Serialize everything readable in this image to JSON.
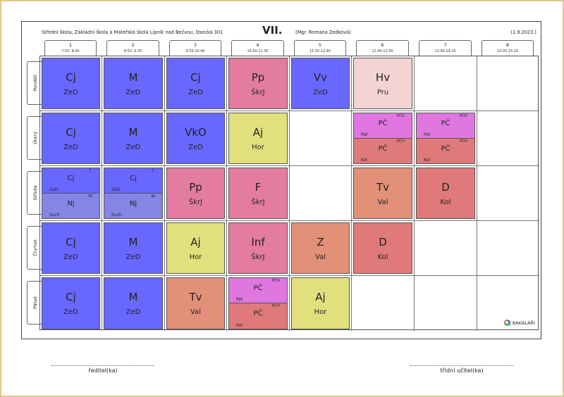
{
  "header": {
    "school": "Střední škola, Základní škola a Mateřská škola Lipník nad Bečvou, Osecká 301",
    "class_name": "VII.",
    "teacher": "(Mgr. Romana Zedková)",
    "date": "(1.9.2023.)"
  },
  "periods": [
    {
      "num": "1",
      "time": "7:55- 8:40"
    },
    {
      "num": "2",
      "time": "8:50- 9:35"
    },
    {
      "num": "3",
      "time": "9:55-10:40"
    },
    {
      "num": "4",
      "time": "10:50-11:35"
    },
    {
      "num": "5",
      "time": "11:55-12:40"
    },
    {
      "num": "6",
      "time": "12:45-13:30"
    },
    {
      "num": "7",
      "time": "13:40-14:25"
    },
    {
      "num": "8",
      "time": "14:35-15:20"
    }
  ],
  "days": [
    "Pondělí",
    "Úterý",
    "Středa",
    "Čtvrtek",
    "Pátek"
  ],
  "colors": {
    "blue": "#6868ff",
    "lavender": "#8585e6",
    "pink": "#e37c9e",
    "light_pink": "#f4d3d3",
    "yellow": "#e2e07c",
    "magenta": "#e077e0",
    "salmon": "#e07a7a",
    "orange": "#e39078",
    "frame": "#e3c58a"
  },
  "lessons": [
    {
      "day": 0,
      "period": 0,
      "subject": "Cj",
      "teacher": "ZeD",
      "color": "c-blue"
    },
    {
      "day": 0,
      "period": 1,
      "subject": "M",
      "teacher": "ZeD",
      "color": "c-blue"
    },
    {
      "day": 0,
      "period": 2,
      "subject": "Cj",
      "teacher": "ZeD",
      "color": "c-blue"
    },
    {
      "day": 0,
      "period": 3,
      "subject": "Pp",
      "teacher": "ŠkrJ",
      "color": "c-pink"
    },
    {
      "day": 0,
      "period": 4,
      "subject": "Vv",
      "teacher": "ZeD",
      "color": "c-blue"
    },
    {
      "day": 0,
      "period": 5,
      "subject": "Hv",
      "teacher": "Pru",
      "color": "c-lpink"
    },
    {
      "day": 1,
      "period": 0,
      "subject": "Cj",
      "teacher": "ZeD",
      "color": "c-blue"
    },
    {
      "day": 1,
      "period": 1,
      "subject": "M",
      "teacher": "ZeD",
      "color": "c-blue"
    },
    {
      "day": 1,
      "period": 2,
      "subject": "VkO",
      "teacher": "ZeD",
      "color": "c-blue"
    },
    {
      "day": 1,
      "period": 3,
      "subject": "Aj",
      "teacher": "Hor",
      "color": "c-yel"
    },
    {
      "day": 1,
      "period": 5,
      "split": [
        {
          "subject": "PČ",
          "teacher": "Pet",
          "room": "PČD",
          "color": "c-mag"
        },
        {
          "subject": "PČ",
          "teacher": "Kol",
          "room": "PČH",
          "color": "c-sal"
        }
      ]
    },
    {
      "day": 1,
      "period": 6,
      "split": [
        {
          "subject": "PČ",
          "teacher": "Pet",
          "room": "PČD",
          "color": "c-mag"
        },
        {
          "subject": "PČ",
          "teacher": "Kol",
          "room": "PČH",
          "color": "c-sal"
        }
      ]
    },
    {
      "day": 2,
      "period": 0,
      "split": [
        {
          "subject": "Cj",
          "teacher": "ZeD",
          "room": "7.",
          "color": "c-blue"
        },
        {
          "subject": "Nj",
          "teacher": "Such",
          "room": "Nj",
          "color": "c-lav"
        }
      ]
    },
    {
      "day": 2,
      "period": 1,
      "split": [
        {
          "subject": "Cj",
          "teacher": "ZeD",
          "room": "7.",
          "color": "c-blue"
        },
        {
          "subject": "Nj",
          "teacher": "Such",
          "room": "Nj",
          "color": "c-lav"
        }
      ]
    },
    {
      "day": 2,
      "period": 2,
      "subject": "Pp",
      "teacher": "ŠkrJ",
      "color": "c-pink"
    },
    {
      "day": 2,
      "period": 3,
      "subject": "F",
      "teacher": "ŠkrJ",
      "color": "c-pink"
    },
    {
      "day": 2,
      "period": 5,
      "subject": "Tv",
      "teacher": "Val",
      "color": "c-org"
    },
    {
      "day": 2,
      "period": 6,
      "subject": "D",
      "teacher": "Kol",
      "color": "c-sal"
    },
    {
      "day": 3,
      "period": 0,
      "subject": "Cj",
      "teacher": "ZeD",
      "color": "c-blue"
    },
    {
      "day": 3,
      "period": 1,
      "subject": "M",
      "teacher": "ZeD",
      "color": "c-blue"
    },
    {
      "day": 3,
      "period": 2,
      "subject": "Aj",
      "teacher": "Hor",
      "color": "c-yel"
    },
    {
      "day": 3,
      "period": 3,
      "subject": "Inf",
      "teacher": "ŠkrJ",
      "color": "c-pink"
    },
    {
      "day": 3,
      "period": 4,
      "subject": "Z",
      "teacher": "Val",
      "color": "c-org"
    },
    {
      "day": 3,
      "period": 5,
      "subject": "D",
      "teacher": "Kol",
      "color": "c-sal"
    },
    {
      "day": 4,
      "period": 0,
      "subject": "Cj",
      "teacher": "ZeD",
      "color": "c-blue"
    },
    {
      "day": 4,
      "period": 1,
      "subject": "M",
      "teacher": "ZeD",
      "color": "c-blue"
    },
    {
      "day": 4,
      "period": 2,
      "subject": "Tv",
      "teacher": "Val",
      "color": "c-org"
    },
    {
      "day": 4,
      "period": 3,
      "split": [
        {
          "subject": "PČ",
          "teacher": "Pet",
          "room": "PČD",
          "color": "c-mag"
        },
        {
          "subject": "PČ",
          "teacher": "Kol",
          "room": "PČH",
          "color": "c-sal"
        }
      ]
    },
    {
      "day": 4,
      "period": 4,
      "subject": "Aj",
      "teacher": "Hor",
      "color": "c-yel"
    }
  ],
  "logo": {
    "text": "BAKALÁŘI",
    "icon": "bakalari-logo-icon"
  },
  "signatures": {
    "left": "ředitel(ka)",
    "right": "třídní učitel(ka)"
  }
}
